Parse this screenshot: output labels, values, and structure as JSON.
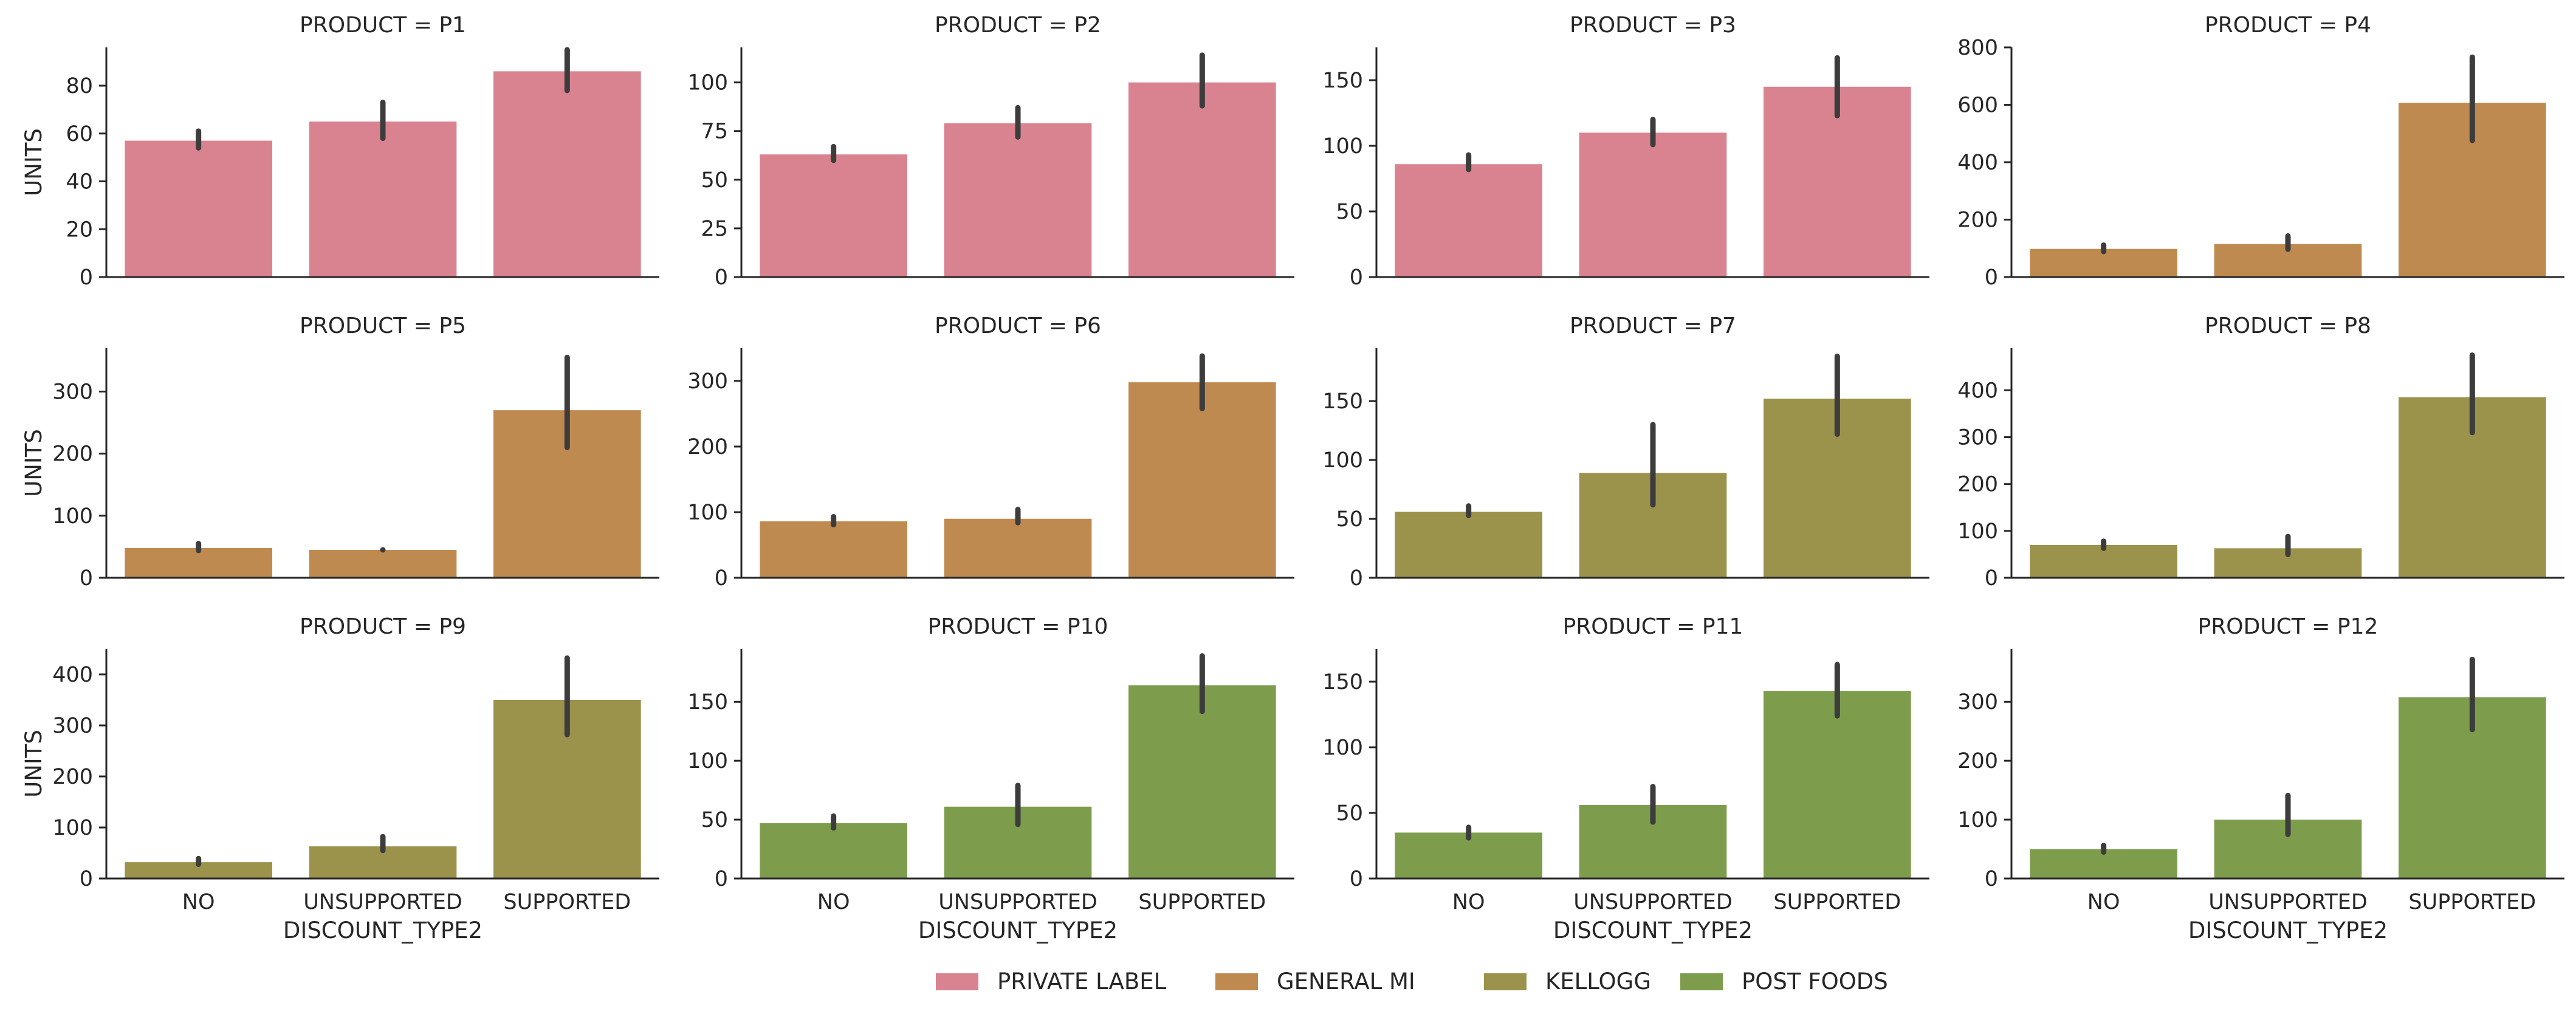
{
  "chart_data": {
    "type": "bar",
    "layout": "facet-grid 3x4",
    "x_label": "DISCOUNT_TYPE2",
    "y_label": "UNITS",
    "categories": [
      "NO",
      "UNSUPPORTED",
      "SUPPORTED"
    ],
    "colors": {
      "PRIVATE LABEL": "#d98290",
      "GENERAL MI": "#bf8a4f",
      "KELLOGG": "#9b924b",
      "POST FOODS": "#7d9d4d"
    },
    "legend": {
      "placement": "bottom-center",
      "entries": [
        "PRIVATE LABEL",
        "GENERAL MI",
        "KELLOGG",
        "POST FOODS"
      ]
    },
    "facets": [
      {
        "title": "PRODUCT = P1",
        "manufacturer": "PRIVATE LABEL",
        "ylim": [
          0,
          96
        ],
        "yticks": [
          0,
          20,
          40,
          60,
          80
        ],
        "values": [
          57,
          65,
          86
        ],
        "err_low": [
          54,
          58,
          78
        ],
        "err_high": [
          61,
          73,
          95
        ]
      },
      {
        "title": "PRODUCT = P2",
        "manufacturer": "PRIVATE LABEL",
        "ylim": [
          0,
          118
        ],
        "yticks": [
          0,
          25,
          50,
          75,
          100
        ],
        "values": [
          63,
          79,
          100
        ],
        "err_low": [
          60,
          72,
          88
        ],
        "err_high": [
          67,
          87,
          114
        ]
      },
      {
        "title": "PRODUCT = P3",
        "manufacturer": "PRIVATE LABEL",
        "ylim": [
          0,
          175
        ],
        "yticks": [
          0,
          50,
          100,
          150
        ],
        "values": [
          86,
          110,
          145
        ],
        "err_low": [
          82,
          101,
          123
        ],
        "err_high": [
          93,
          120,
          167
        ]
      },
      {
        "title": "PRODUCT = P4",
        "manufacturer": "GENERAL MI",
        "ylim": [
          0,
          800
        ],
        "yticks": [
          0,
          200,
          400,
          600,
          800
        ],
        "values": [
          98,
          115,
          607
        ],
        "err_low": [
          89,
          97,
          476
        ],
        "err_high": [
          111,
          143,
          766
        ]
      },
      {
        "title": "PRODUCT = P5",
        "manufacturer": "GENERAL MI",
        "ylim": [
          0,
          370
        ],
        "yticks": [
          0,
          100,
          200,
          300
        ],
        "values": [
          48,
          45,
          270
        ],
        "err_low": [
          44,
          45,
          210
        ],
        "err_high": [
          55,
          45,
          355
        ]
      },
      {
        "title": "PRODUCT = P6",
        "manufacturer": "GENERAL MI",
        "ylim": [
          0,
          350
        ],
        "yticks": [
          0,
          100,
          200,
          300
        ],
        "values": [
          86,
          90,
          298
        ],
        "err_low": [
          81,
          84,
          258
        ],
        "err_high": [
          93,
          104,
          338
        ]
      },
      {
        "title": "PRODUCT = P7",
        "manufacturer": "KELLOGG",
        "ylim": [
          0,
          195
        ],
        "yticks": [
          0,
          50,
          100,
          150
        ],
        "values": [
          56,
          89,
          152
        ],
        "err_low": [
          53,
          62,
          122
        ],
        "err_high": [
          61,
          130,
          188
        ]
      },
      {
        "title": "PRODUCT = P8",
        "manufacturer": "KELLOGG",
        "ylim": [
          0,
          490
        ],
        "yticks": [
          0,
          100,
          200,
          300,
          400
        ],
        "values": [
          70,
          63,
          385
        ],
        "err_low": [
          63,
          50,
          310
        ],
        "err_high": [
          78,
          88,
          475
        ]
      },
      {
        "title": "PRODUCT = P9",
        "manufacturer": "KELLOGG",
        "ylim": [
          0,
          450
        ],
        "yticks": [
          0,
          100,
          200,
          300,
          400
        ],
        "values": [
          32,
          63,
          350
        ],
        "err_low": [
          28,
          55,
          282
        ],
        "err_high": [
          39,
          82,
          432
        ]
      },
      {
        "title": "PRODUCT = P10",
        "manufacturer": "POST FOODS",
        "ylim": [
          0,
          195
        ],
        "yticks": [
          0,
          50,
          100,
          150
        ],
        "values": [
          47,
          61,
          164
        ],
        "err_low": [
          43,
          46,
          142
        ],
        "err_high": [
          53,
          79,
          189
        ]
      },
      {
        "title": "PRODUCT = P11",
        "manufacturer": "POST FOODS",
        "ylim": [
          0,
          175
        ],
        "yticks": [
          0,
          50,
          100,
          150
        ],
        "values": [
          35,
          56,
          143
        ],
        "err_low": [
          31,
          43,
          124
        ],
        "err_high": [
          39,
          70,
          163
        ]
      },
      {
        "title": "PRODUCT = P12",
        "manufacturer": "POST FOODS",
        "ylim": [
          0,
          390
        ],
        "yticks": [
          0,
          100,
          200,
          300
        ],
        "values": [
          50,
          100,
          308
        ],
        "err_low": [
          45,
          75,
          253
        ],
        "err_high": [
          56,
          141,
          372
        ]
      }
    ]
  }
}
